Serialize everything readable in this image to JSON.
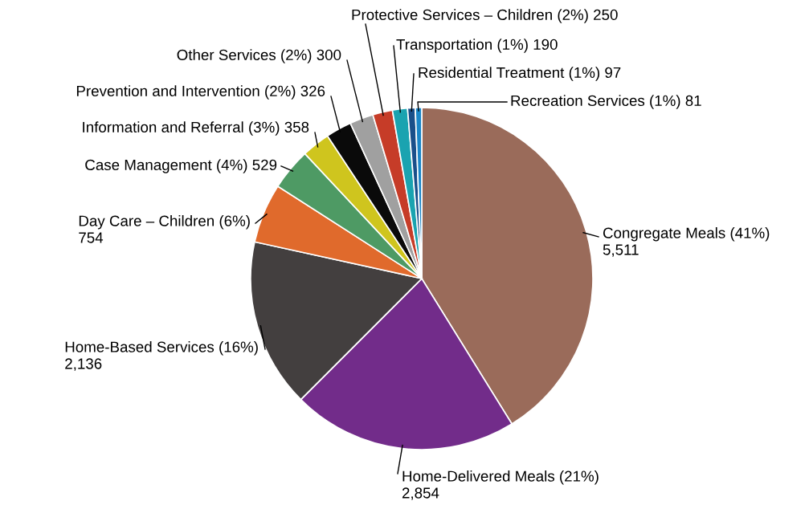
{
  "chart_data": {
    "type": "pie",
    "categories": [
      "Congregate Meals (41%)",
      "Home-Delivered Meals (21%)",
      "Home-Based Services (16%)",
      "Day Care – Children (6%)",
      "Case Management (4%)",
      "Information and Referral (3%)",
      "Prevention and Intervention (2%)",
      "Other Services (2%)",
      "Protective Services – Children (2%)",
      "Transportation (1%)",
      "Residential Treatment (1%)",
      "Recreation Services (1%)"
    ],
    "values": [
      5511,
      2854,
      2136,
      754,
      529,
      358,
      326,
      300,
      250,
      190,
      97,
      81
    ],
    "value_labels": [
      "5,511",
      "2,854",
      "2,136",
      "754",
      "529",
      "358",
      "326",
      "300",
      "250",
      "190",
      "97",
      "81"
    ],
    "colors": [
      "#9a6b5a",
      "#722c8a",
      "#433f3f",
      "#e06a2c",
      "#4e9a64",
      "#cfc51e",
      "#0a0a0a",
      "#a0a0a0",
      "#c63c28",
      "#1aa3b0",
      "#1a4f8a",
      "#1a86c8"
    ]
  }
}
